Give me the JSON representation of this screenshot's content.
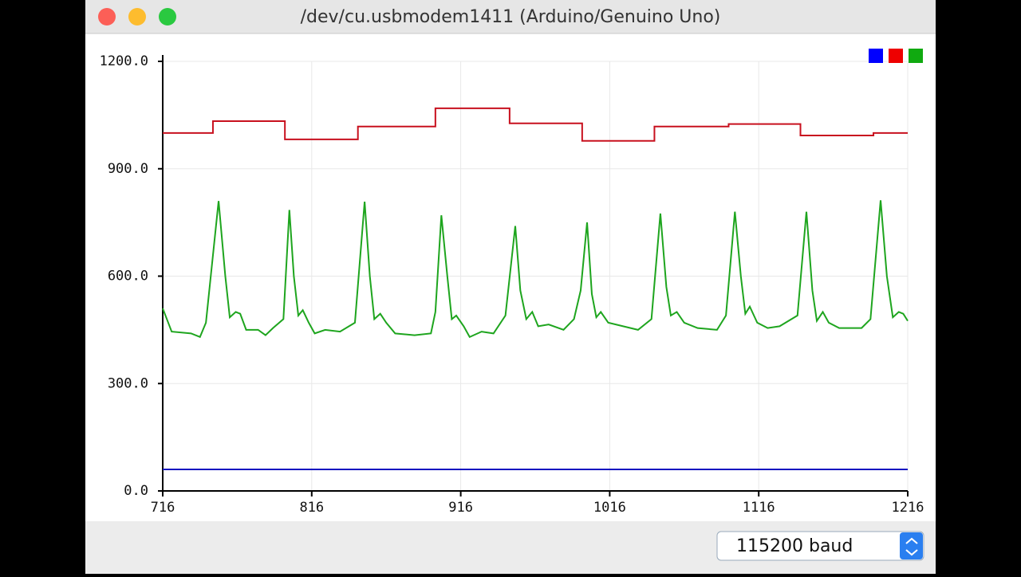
{
  "window": {
    "title": "/dev/cu.usbmodem1411 (Arduino/Genuino Uno)",
    "baud": "115200 baud"
  },
  "chart_data": {
    "type": "line",
    "xlim": [
      716,
      1216
    ],
    "xticks": [
      716,
      816,
      916,
      1016,
      1116,
      1216
    ],
    "ylim": [
      0,
      1200
    ],
    "yticks": [
      {
        "value": 0,
        "label": "0.0"
      },
      {
        "value": 300,
        "label": "300.0"
      },
      {
        "value": 600,
        "label": "600.0"
      },
      {
        "value": 900,
        "label": "900.0"
      },
      {
        "value": 1200,
        "label": "1200.0"
      }
    ],
    "grid": true,
    "series": [
      {
        "color": "#1010c0",
        "legend_color": "#0000ff",
        "x": [
          716,
          1216
        ],
        "values": [
          60,
          60
        ]
      },
      {
        "color": "#c8101e",
        "legend_color": "#ee0000",
        "x": [
          716,
          749.7,
          749.7,
          798,
          798,
          847,
          847,
          899,
          899,
          948.8,
          948.8,
          997.5,
          997.5,
          1046,
          1046,
          1095.8,
          1095.8,
          1144,
          1144,
          1193,
          1193,
          1216
        ],
        "values": [
          1000,
          1000,
          1033,
          1033,
          982,
          982,
          1018,
          1018,
          1069,
          1069,
          1027,
          1027,
          978,
          978,
          1018,
          1018,
          1025,
          1025,
          993,
          993,
          1000,
          1000
        ]
      },
      {
        "color": "#1ea51e",
        "legend_color": "#10aa10",
        "x": [
          716,
          722,
          735,
          741,
          745,
          753.5,
          758,
          761,
          765,
          768,
          772,
          780,
          785,
          790,
          797,
          801,
          804,
          807,
          810,
          814,
          818,
          825,
          835,
          845,
          851.5,
          855,
          858,
          862,
          866,
          872,
          885,
          896,
          899,
          903,
          907,
          910,
          913,
          918,
          922,
          930,
          938,
          946,
          952.6,
          956,
          960,
          964,
          968,
          975,
          985,
          992,
          996.5,
          1000.8,
          1004,
          1007,
          1010,
          1015,
          1025,
          1035,
          1044,
          1050,
          1054,
          1057,
          1061,
          1066,
          1075,
          1088,
          1094,
          1100,
          1104,
          1107,
          1110,
          1115,
          1122,
          1130,
          1142,
          1148,
          1152,
          1155,
          1159,
          1163,
          1170,
          1185,
          1191,
          1197.8,
          1202,
          1206,
          1210,
          1213,
          1216
        ],
        "values": [
          510,
          445,
          440,
          430,
          470,
          810,
          600,
          485,
          500,
          495,
          450,
          450,
          435,
          455,
          480,
          785,
          600,
          490,
          505,
          470,
          440,
          450,
          445,
          470,
          808,
          600,
          480,
          495,
          470,
          440,
          435,
          440,
          500,
          770,
          600,
          480,
          490,
          460,
          430,
          445,
          440,
          490,
          740,
          560,
          480,
          500,
          460,
          465,
          450,
          480,
          560,
          750,
          550,
          485,
          500,
          470,
          460,
          450,
          480,
          775,
          570,
          490,
          500,
          470,
          455,
          450,
          490,
          780,
          600,
          495,
          515,
          470,
          455,
          460,
          490,
          780,
          560,
          475,
          500,
          470,
          455,
          455,
          480,
          812,
          600,
          485,
          500,
          495,
          475
        ]
      }
    ]
  }
}
